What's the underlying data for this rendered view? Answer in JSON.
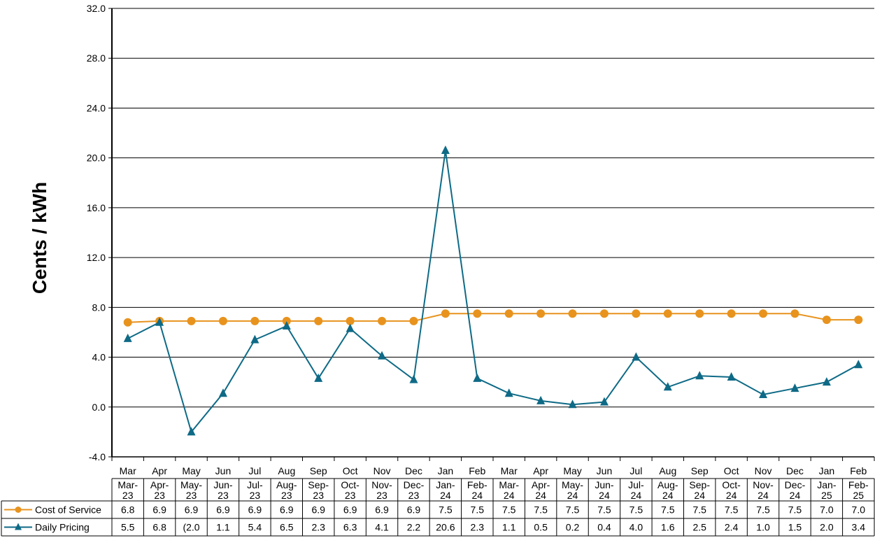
{
  "chart_data": {
    "type": "line",
    "title": "",
    "xlabel": "",
    "ylabel": "Cents / kWh",
    "ylim": [
      -4.0,
      32.0
    ],
    "yticks": [
      "-4.0",
      "0.0",
      "4.0",
      "8.0",
      "12.0",
      "16.0",
      "20.0",
      "24.0",
      "28.0",
      "32.0"
    ],
    "grid": true,
    "legend_position": "data-table",
    "categories": [
      "Mar",
      "Apr",
      "May",
      "Jun",
      "Jul",
      "Aug",
      "Sep",
      "Oct",
      "Nov",
      "Dec",
      "Jan",
      "Feb",
      "Mar",
      "Apr",
      "May",
      "Jun",
      "Jul",
      "Aug",
      "Sep",
      "Oct",
      "Nov",
      "Dec",
      "Jan",
      "Feb"
    ],
    "table_headers": [
      [
        "Mar-",
        "23"
      ],
      [
        "Apr-",
        "23"
      ],
      [
        "May-",
        "23"
      ],
      [
        "Jun-",
        "23"
      ],
      [
        "Jul-",
        "23"
      ],
      [
        "Aug-",
        "23"
      ],
      [
        "Sep-",
        "23"
      ],
      [
        "Oct-",
        "23"
      ],
      [
        "Nov-",
        "23"
      ],
      [
        "Dec-",
        "23"
      ],
      [
        "Jan-",
        "24"
      ],
      [
        "Feb-",
        "24"
      ],
      [
        "Mar-",
        "24"
      ],
      [
        "Apr-",
        "24"
      ],
      [
        "May-",
        "24"
      ],
      [
        "Jun-",
        "24"
      ],
      [
        "Jul-",
        "24"
      ],
      [
        "Aug-",
        "24"
      ],
      [
        "Sep-",
        "24"
      ],
      [
        "Oct-",
        "24"
      ],
      [
        "Nov-",
        "24"
      ],
      [
        "Dec-",
        "24"
      ],
      [
        "Jan-",
        "25"
      ],
      [
        "Feb-",
        "25"
      ]
    ],
    "series": [
      {
        "name": "Cost of Service",
        "color": "#E8931E",
        "marker": "circle",
        "values": [
          6.8,
          6.9,
          6.9,
          6.9,
          6.9,
          6.9,
          6.9,
          6.9,
          6.9,
          6.9,
          7.5,
          7.5,
          7.5,
          7.5,
          7.5,
          7.5,
          7.5,
          7.5,
          7.5,
          7.5,
          7.5,
          7.5,
          7.0,
          7.0
        ],
        "labels": [
          "6.8",
          "6.9",
          "6.9",
          "6.9",
          "6.9",
          "6.9",
          "6.9",
          "6.9",
          "6.9",
          "6.9",
          "7.5",
          "7.5",
          "7.5",
          "7.5",
          "7.5",
          "7.5",
          "7.5",
          "7.5",
          "7.5",
          "7.5",
          "7.5",
          "7.5",
          "7.0",
          "7.0"
        ]
      },
      {
        "name": "Daily Pricing",
        "color": "#0E6A86",
        "marker": "triangle",
        "values": [
          5.5,
          6.8,
          -2.0,
          1.1,
          5.4,
          6.5,
          2.3,
          6.3,
          4.1,
          2.2,
          20.6,
          2.3,
          1.1,
          0.5,
          0.2,
          0.4,
          4.0,
          1.6,
          2.5,
          2.4,
          1.0,
          1.5,
          2.0,
          3.4
        ],
        "labels": [
          "5.5",
          "6.8",
          "(2.0",
          "1.1",
          "5.4",
          "6.5",
          "2.3",
          "6.3",
          "4.1",
          "2.2",
          "20.6",
          "2.3",
          "1.1",
          "0.5",
          "0.2",
          "0.4",
          "4.0",
          "1.6",
          "2.5",
          "2.4",
          "1.0",
          "1.5",
          "2.0",
          "3.4"
        ]
      }
    ]
  }
}
